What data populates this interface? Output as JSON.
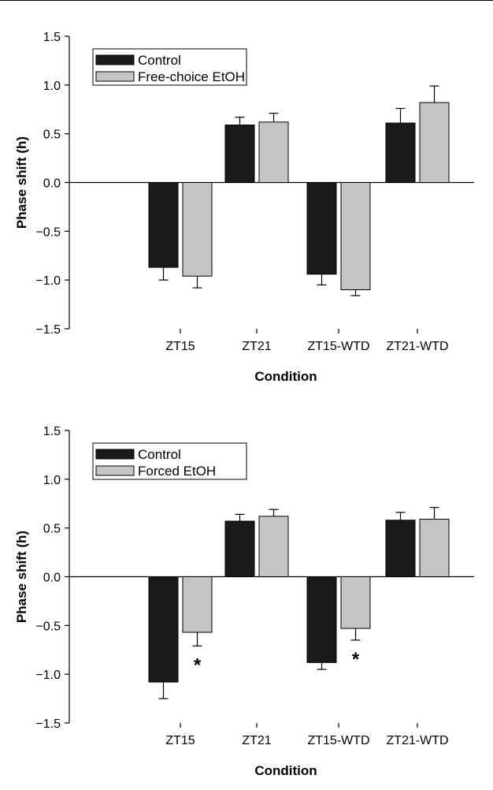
{
  "chart_data": [
    {
      "type": "bar",
      "categories": [
        "ZT15",
        "ZT21",
        "ZT15-WTD",
        "ZT21-WTD"
      ],
      "series": [
        {
          "name": "Control",
          "color": "#1a1a1a",
          "values": [
            -0.87,
            0.59,
            -0.94,
            0.61
          ],
          "errors": [
            0.13,
            0.08,
            0.11,
            0.15
          ]
        },
        {
          "name": "Free-choice EtOH",
          "color": "#c4c4c4",
          "values": [
            -0.96,
            0.62,
            -1.1,
            0.82
          ],
          "errors": [
            0.12,
            0.09,
            0.06,
            0.17
          ]
        }
      ],
      "significance": [
        "",
        "",
        "",
        ""
      ],
      "xlabel": "Condition",
      "ylabel": "Phase shift (h)",
      "ylim": [
        -1.5,
        1.5
      ],
      "yticks": [
        "1.5",
        "1.0",
        "0.5",
        "0.0",
        "−0.5",
        "−1.0",
        "−1.5"
      ],
      "yticks_values": [
        1.5,
        1.0,
        0.5,
        0.0,
        -0.5,
        -1.0,
        -1.5
      ],
      "legend_position": "top-left",
      "grid": false
    },
    {
      "type": "bar",
      "categories": [
        "ZT15",
        "ZT21",
        "ZT15-WTD",
        "ZT21-WTD"
      ],
      "series": [
        {
          "name": "Control",
          "color": "#1a1a1a",
          "values": [
            -1.08,
            0.57,
            -0.88,
            0.58
          ],
          "errors": [
            0.17,
            0.07,
            0.07,
            0.08
          ]
        },
        {
          "name": "Forced EtOH",
          "color": "#c4c4c4",
          "values": [
            -0.57,
            0.62,
            -0.53,
            0.59
          ],
          "errors": [
            0.14,
            0.07,
            0.12,
            0.12
          ]
        }
      ],
      "significance": [
        "*",
        "",
        "*",
        ""
      ],
      "xlabel": "Condition",
      "ylabel": "Phase shift (h)",
      "ylim": [
        -1.5,
        1.5
      ],
      "yticks": [
        "1.5",
        "1.0",
        "0.5",
        "0.0",
        "−0.5",
        "−1.0",
        "−1.5"
      ],
      "yticks_values": [
        1.5,
        1.0,
        0.5,
        0.0,
        -0.5,
        -1.0,
        -1.5
      ],
      "legend_position": "top-left",
      "grid": false
    }
  ]
}
